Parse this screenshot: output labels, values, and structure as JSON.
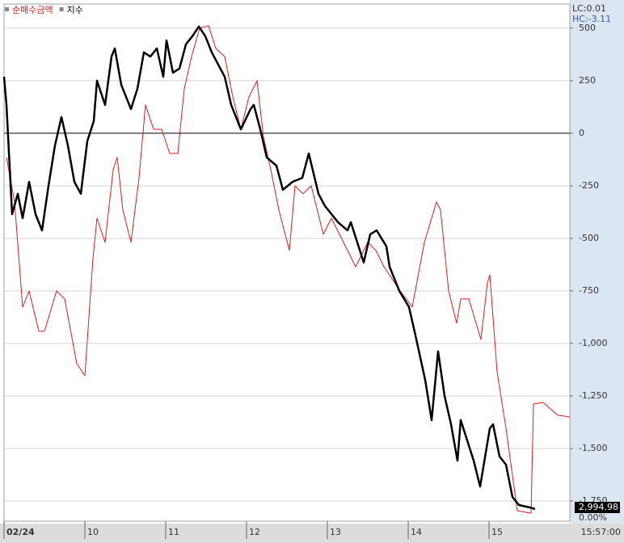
{
  "chart_data": {
    "type": "line",
    "series": [
      {
        "name": "순매수금액",
        "color": "#e01b1b",
        "width": 1,
        "x": [
          0.03,
          0.13,
          0.23,
          0.31,
          0.43,
          0.5,
          0.65,
          0.75,
          0.9,
          1.0,
          1.1,
          1.15,
          1.25,
          1.35,
          1.4,
          1.47,
          1.57,
          1.67,
          1.75,
          1.85,
          1.95,
          2.05,
          2.15,
          2.23,
          2.32,
          2.42,
          2.53,
          2.62,
          2.73,
          2.83,
          2.93,
          3.03,
          3.13,
          3.21,
          3.3,
          3.4,
          3.53,
          3.6,
          3.7,
          3.8,
          3.95,
          4.05,
          4.15,
          4.35,
          4.5,
          4.6,
          4.7,
          4.9,
          5.05,
          5.2,
          5.35,
          5.4,
          5.5,
          5.6,
          5.65,
          5.75,
          5.9,
          5.98,
          6.01,
          6.1,
          6.21,
          6.35,
          6.52,
          6.55,
          6.67,
          6.85,
          7.0
        ],
        "values": [
          -115,
          -327,
          -827,
          -750,
          -942,
          -942,
          -750,
          -788,
          -1096,
          -1154,
          -596,
          -404,
          -519,
          -173,
          -115,
          -365,
          -519,
          -212,
          135,
          19,
          19,
          -96,
          -96,
          212,
          365,
          500,
          512,
          404,
          365,
          173,
          19,
          173,
          250,
          -19,
          -173,
          -365,
          -558,
          -250,
          -288,
          -250,
          -481,
          -404,
          -481,
          -635,
          -519,
          -558,
          -635,
          -750,
          -827,
          -519,
          -327,
          -365,
          -750,
          -904,
          -788,
          -788,
          -981,
          -712,
          -673,
          -1135,
          -1404,
          -1796,
          -1808,
          -1288,
          -1281,
          -1342,
          -1350
        ]
      },
      {
        "name": "지수",
        "color": "#000000",
        "width": 2.5,
        "x": [
          0,
          0.03,
          0.1,
          0.17,
          0.23,
          0.31,
          0.39,
          0.47,
          0.55,
          0.63,
          0.71,
          0.79,
          0.87,
          0.95,
          1.03,
          1.11,
          1.15,
          1.25,
          1.33,
          1.37,
          1.45,
          1.57,
          1.65,
          1.73,
          1.81,
          1.89,
          1.97,
          2.01,
          2.09,
          2.17,
          2.25,
          2.33,
          2.41,
          2.49,
          2.57,
          2.65,
          2.73,
          2.81,
          2.93,
          3.05,
          3.09,
          3.17,
          3.25,
          3.37,
          3.45,
          3.57,
          3.69,
          3.77,
          3.89,
          3.97,
          4.13,
          4.25,
          4.29,
          4.45,
          4.53,
          4.61,
          4.73,
          4.77,
          4.89,
          5.01,
          5.09,
          5.21,
          5.29,
          5.37,
          5.45,
          5.53,
          5.61,
          5.65,
          5.81,
          5.89,
          6.01,
          6.05,
          6.13,
          6.21,
          6.29,
          6.37,
          6.51,
          6.57
        ],
        "values": [
          269,
          135,
          -385,
          -288,
          -404,
          -231,
          -385,
          -462,
          -250,
          -58,
          77,
          -58,
          -231,
          -288,
          -38,
          58,
          250,
          135,
          365,
          404,
          231,
          115,
          212,
          385,
          365,
          404,
          269,
          442,
          288,
          308,
          423,
          462,
          508,
          462,
          385,
          327,
          269,
          135,
          19,
          115,
          135,
          19,
          -115,
          -154,
          -269,
          -231,
          -212,
          -96,
          -288,
          -346,
          -423,
          -462,
          -423,
          -615,
          -481,
          -462,
          -538,
          -635,
          -750,
          -827,
          -962,
          -1173,
          -1365,
          -1038,
          -1250,
          -1385,
          -1558,
          -1365,
          -1558,
          -1681,
          -1404,
          -1385,
          -1538,
          -1577,
          -1731,
          -1769,
          -1781,
          -1788
        ]
      }
    ],
    "xlim": [
      0,
      7
    ],
    "xticks": [
      {
        "value": 0,
        "label": "02/24"
      },
      {
        "value": 1,
        "label": "10"
      },
      {
        "value": 2,
        "label": "11"
      },
      {
        "value": 3,
        "label": "12"
      },
      {
        "value": 4,
        "label": "13"
      },
      {
        "value": 5,
        "label": "14"
      },
      {
        "value": 6,
        "label": "15"
      }
    ],
    "ylim": [
      -1846,
      615
    ],
    "yticks": [
      500,
      250,
      0,
      -250,
      -500,
      -750,
      {
        "value": -1000,
        "label": "-1,000"
      },
      {
        "value": -1250,
        "label": "-1,250"
      },
      {
        "value": -1500,
        "label": "-1,500"
      },
      {
        "value": -1750,
        "label": "-1,750"
      }
    ],
    "grid": true,
    "zero_line": true,
    "lc": "LC:0.01",
    "hc": "HC:-3.11",
    "last_value": "2,994.98",
    "change": "0.00%",
    "time": "15:57:00"
  }
}
